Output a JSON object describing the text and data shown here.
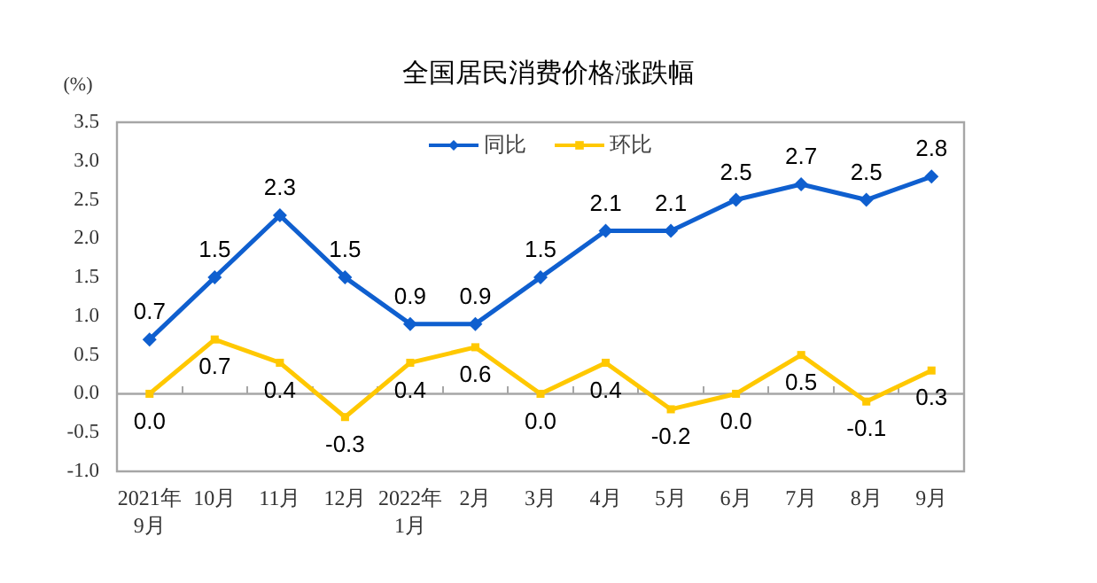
{
  "chart_data": {
    "type": "line",
    "title": "全国居民消费价格涨跌幅",
    "ylabel": "(%)",
    "categories": [
      "2021年\n9月",
      "10月",
      "11月",
      "12月",
      "2022年\n1月",
      "2月",
      "3月",
      "4月",
      "5月",
      "6月",
      "7月",
      "8月",
      "9月"
    ],
    "series": [
      {
        "name": "同比",
        "color": "#0f5fcf",
        "marker": "diamond",
        "values": [
          0.7,
          1.5,
          2.3,
          1.5,
          0.9,
          0.9,
          1.5,
          2.1,
          2.1,
          2.5,
          2.7,
          2.5,
          2.8
        ],
        "value_labels": [
          "0.7",
          "1.5",
          "2.3",
          "1.5",
          "0.9",
          "0.9",
          "1.5",
          "2.1",
          "2.1",
          "2.5",
          "2.7",
          "2.5",
          "2.8"
        ]
      },
      {
        "name": "环比",
        "color": "#ffc800",
        "marker": "square",
        "values": [
          0.0,
          0.7,
          0.4,
          -0.3,
          0.4,
          0.6,
          0.0,
          0.4,
          -0.2,
          0.0,
          0.5,
          -0.1,
          0.3
        ],
        "value_labels": [
          "0.0",
          "0.7",
          "0.4",
          "-0.3",
          "0.4",
          "0.6",
          "0.0",
          "0.4",
          "-0.2",
          "0.0",
          "0.5",
          "-0.1",
          "0.3"
        ]
      }
    ],
    "ylim": [
      -1,
      3.5
    ],
    "yticks": [
      {
        "value": -1,
        "label": "-1.0"
      },
      -0.5,
      {
        "value": 0,
        "label": "0.0"
      },
      0.5,
      {
        "value": 1,
        "label": "1.0"
      },
      1.5,
      {
        "value": 2,
        "label": "2.0"
      },
      2.5,
      {
        "value": 3,
        "label": "3.0"
      },
      3.5
    ],
    "ref_lines": [
      {
        "axis": "y",
        "value": 0,
        "color": "#a6a6a6"
      }
    ],
    "grid": false,
    "legend": "top",
    "line_style": "solid"
  }
}
